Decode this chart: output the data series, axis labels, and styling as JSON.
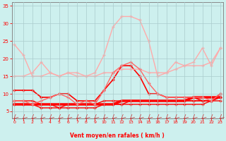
{
  "x": [
    0,
    1,
    2,
    3,
    4,
    5,
    6,
    7,
    8,
    9,
    10,
    11,
    12,
    13,
    14,
    15,
    16,
    17,
    18,
    19,
    20,
    21,
    22,
    23
  ],
  "series": [
    {
      "y": [
        11,
        11,
        11,
        9,
        9,
        10,
        10,
        8,
        8,
        8,
        11,
        14,
        18,
        18,
        15,
        10,
        10,
        9,
        9,
        9,
        9,
        8,
        8,
        10
      ],
      "color": "#ff0000",
      "lw": 1.2,
      "ms": 2.5,
      "marker": "+"
    },
    {
      "y": [
        8,
        8,
        8,
        7,
        7,
        6,
        7,
        7,
        7,
        7,
        8,
        8,
        8,
        8,
        8,
        8,
        8,
        8,
        8,
        8,
        8,
        8,
        8,
        9
      ],
      "color": "#ff0000",
      "lw": 1.0,
      "ms": 2.5,
      "marker": "+"
    },
    {
      "y": [
        7,
        7,
        7,
        6,
        6,
        6,
        6,
        6,
        6,
        6,
        7,
        7,
        7,
        7,
        7,
        7,
        7,
        7,
        7,
        7,
        7,
        7,
        8,
        8
      ],
      "color": "#ff0000",
      "lw": 1.0,
      "ms": 2.5,
      "marker": "+"
    },
    {
      "y": [
        7,
        7,
        7,
        7,
        7,
        7,
        7,
        7,
        7,
        7,
        7,
        7,
        7,
        8,
        8,
        8,
        8,
        8,
        8,
        8,
        8,
        8,
        8,
        9
      ],
      "color": "#ff0000",
      "lw": 1.0,
      "ms": 2.5,
      "marker": "+"
    },
    {
      "y": [
        7,
        7,
        7,
        7,
        7,
        7,
        7,
        7,
        7,
        7,
        7,
        7,
        8,
        8,
        8,
        8,
        8,
        8,
        8,
        8,
        9,
        9,
        9,
        9
      ],
      "color": "#ff0000",
      "lw": 2.5,
      "ms": 2,
      "marker": "+"
    },
    {
      "y": [
        24,
        21,
        15,
        15,
        16,
        15,
        16,
        16,
        15,
        16,
        21,
        29,
        32,
        32,
        31,
        25,
        15,
        16,
        19,
        18,
        19,
        23,
        18,
        23
      ],
      "color": "#ffaaaa",
      "lw": 1.0,
      "ms": 2.5,
      "marker": "+"
    },
    {
      "y": [
        15,
        15,
        16,
        19,
        16,
        15,
        16,
        15,
        15,
        15,
        16,
        16,
        17,
        17,
        17,
        16,
        16,
        16,
        17,
        18,
        18,
        18,
        19,
        23
      ],
      "color": "#ffaaaa",
      "lw": 1.0,
      "ms": 2.5,
      "marker": "+"
    },
    {
      "y": [
        8,
        8,
        7,
        8,
        9,
        10,
        9,
        7,
        8,
        7,
        11,
        16,
        18,
        19,
        17,
        13,
        10,
        9,
        9,
        9,
        9,
        9,
        8,
        10
      ],
      "color": "#ff6666",
      "lw": 1.0,
      "ms": 2.5,
      "marker": "+"
    }
  ],
  "xlim": [
    -0.3,
    23.3
  ],
  "ylim": [
    3,
    36
  ],
  "yticks": [
    5,
    10,
    15,
    20,
    25,
    30,
    35
  ],
  "xticks": [
    0,
    1,
    2,
    3,
    4,
    5,
    6,
    7,
    8,
    9,
    10,
    11,
    12,
    13,
    14,
    15,
    16,
    17,
    18,
    19,
    20,
    21,
    22,
    23
  ],
  "xlabel": "Vent moyen/en rafales ( km/h )",
  "bg_color": "#cdf0ee",
  "grid_color": "#aacccc",
  "tick_color": "#ff0000",
  "label_color": "#ff0000",
  "spine_color": "#888888",
  "arrow_color": "#cc3333"
}
